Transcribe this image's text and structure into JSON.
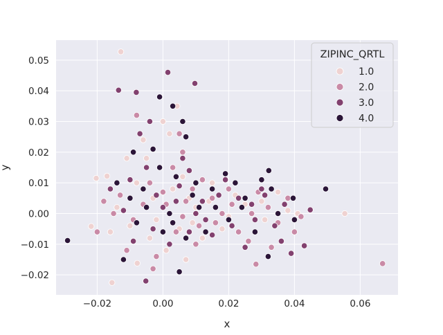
{
  "chart_data": {
    "type": "scatter",
    "title": "",
    "xlabel": "x",
    "ylabel": "y",
    "xlim": [
      -0.0325,
      0.0715
    ],
    "ylim": [
      -0.0265,
      0.0565
    ],
    "xticks": [
      -0.02,
      0.0,
      0.02,
      0.04,
      0.06
    ],
    "xtick_labels": [
      "−0.02",
      "0.00",
      "0.02",
      "0.04",
      "0.06"
    ],
    "yticks": [
      -0.02,
      -0.01,
      0.0,
      0.01,
      0.02,
      0.03,
      0.04,
      0.05
    ],
    "ytick_labels": [
      "−0.02",
      "−0.01",
      "0.00",
      "0.01",
      "0.02",
      "0.03",
      "0.04",
      "0.05"
    ],
    "grid": true,
    "legend": {
      "title": "ZIPINC_QRTL",
      "placement": "top-right",
      "entries": [
        "1.0",
        "2.0",
        "3.0",
        "4.0"
      ]
    },
    "colors": {
      "background": "#eaeaf2",
      "grid": "#ffffff",
      "q1": "#efd2d1",
      "q2": "#c98aa6",
      "q3": "#82416f",
      "q4": "#2b1538"
    },
    "series": [
      {
        "name": "1.0",
        "points": [
          [
            -0.0128,
            0.0527
          ],
          [
            0.0553,
            0.0
          ],
          [
            -0.0203,
            0.0115
          ],
          [
            -0.017,
            0.0122
          ],
          [
            -0.0218,
            -0.0042
          ],
          [
            -0.0155,
            -0.0225
          ],
          [
            -0.0078,
            -0.0162
          ],
          [
            0.0043,
            0.035
          ],
          [
            0.008,
            0.005
          ],
          [
            0.015,
            0.01
          ],
          [
            0.025,
            0.003
          ],
          [
            0.031,
            -0.002
          ],
          [
            0.005,
            -0.005
          ],
          [
            -0.005,
            0.018
          ],
          [
            0.001,
            -0.012
          ],
          [
            -0.003,
            0.005
          ],
          [
            0.002,
            0.026
          ],
          [
            0.012,
            -0.008
          ],
          [
            -0.01,
            -0.004
          ],
          [
            0.035,
            0.007
          ],
          [
            -0.008,
            0.01
          ],
          [
            0.006,
            0.012
          ],
          [
            0.018,
            -0.005
          ],
          [
            -0.002,
            -0.002
          ],
          [
            0.022,
            0.006
          ],
          [
            0.041,
            0.0
          ],
          [
            -0.014,
            0.002
          ],
          [
            0.0,
            0.03
          ],
          [
            0.007,
            -0.015
          ],
          [
            -0.006,
            0.024
          ],
          [
            0.03,
            0.004
          ],
          [
            0.01,
            0.002
          ],
          [
            -0.011,
            0.018
          ],
          [
            0.014,
            0.004
          ],
          [
            -0.004,
            -0.008
          ],
          [
            0.003,
            0.008
          ],
          [
            0.02,
            -0.001
          ],
          [
            0.038,
            0.001
          ],
          [
            -0.016,
            -0.006
          ],
          [
            0.009,
            -0.003
          ]
        ]
      },
      {
        "name": "2.0",
        "points": [
          [
            0.0668,
            -0.0163
          ],
          [
            0.0283,
            -0.0165
          ],
          [
            0.042,
            -0.001
          ],
          [
            -0.02,
            -0.006
          ],
          [
            -0.018,
            0.004
          ],
          [
            0.006,
            0.02
          ],
          [
            0.02,
            0.008
          ],
          [
            0.033,
            -0.011
          ],
          [
            -0.008,
            0.032
          ],
          [
            0.001,
            0.003
          ],
          [
            0.01,
            -0.01
          ],
          [
            0.027,
            0.0
          ],
          [
            -0.011,
            -0.012
          ],
          [
            0.015,
            0.005
          ],
          [
            0.004,
            -0.006
          ],
          [
            0.023,
            -0.006
          ],
          [
            -0.004,
            0.01
          ],
          [
            0.035,
            -0.003
          ],
          [
            0.012,
            0.011
          ],
          [
            -0.013,
            0.006
          ],
          [
            0.007,
            0.004
          ],
          [
            0.029,
            0.007
          ],
          [
            -0.002,
            -0.014
          ],
          [
            0.018,
            0.0
          ],
          [
            0.038,
            0.005
          ],
          [
            -0.006,
            0.003
          ],
          [
            0.003,
            0.015
          ],
          [
            0.026,
            -0.009
          ],
          [
            -0.009,
            -0.002
          ],
          [
            0.009,
            0.008
          ],
          [
            0.016,
            -0.003
          ],
          [
            0.005,
            0.026
          ],
          [
            0.032,
            0.002
          ],
          [
            -0.015,
            0.0
          ],
          [
            0.011,
            -0.004
          ],
          [
            0.0,
            0.007
          ],
          [
            0.021,
            0.003
          ],
          [
            -0.003,
            -0.018
          ],
          [
            0.04,
            -0.006
          ],
          [
            0.006,
            -0.001
          ]
        ]
      },
      {
        "name": "3.0",
        "points": [
          [
            0.0015,
            0.046
          ],
          [
            0.0097,
            0.0424
          ],
          [
            -0.0135,
            0.0402
          ],
          [
            -0.0081,
            0.0395
          ],
          [
            -0.0052,
            -0.022
          ],
          [
            0.043,
            -0.0105
          ],
          [
            0.039,
            -0.013
          ],
          [
            0.0448,
            0.0012
          ],
          [
            0.019,
            0.011
          ],
          [
            0.03,
            0.008
          ],
          [
            -0.016,
            0.008
          ],
          [
            0.0,
            0.002
          ],
          [
            0.008,
            -0.006
          ],
          [
            0.023,
            0.005
          ],
          [
            -0.005,
            0.015
          ],
          [
            0.034,
            -0.004
          ],
          [
            0.012,
            0.004
          ],
          [
            -0.009,
            -0.009
          ],
          [
            0.005,
            0.009
          ],
          [
            0.028,
            -0.002
          ],
          [
            -0.002,
            0.006
          ],
          [
            0.015,
            -0.007
          ],
          [
            0.037,
            0.003
          ],
          [
            -0.012,
            0.001
          ],
          [
            0.006,
            0.018
          ],
          [
            0.021,
            -0.004
          ],
          [
            0.002,
            -0.01
          ],
          [
            0.031,
            0.006
          ],
          [
            -0.007,
            0.026
          ],
          [
            0.01,
            0.0
          ],
          [
            0.025,
            -0.011
          ],
          [
            -0.003,
            -0.005
          ],
          [
            0.017,
            0.006
          ],
          [
            0.004,
            0.004
          ],
          [
            -0.01,
            0.011
          ],
          [
            0.036,
            -0.009
          ],
          [
            0.008,
            0.014
          ],
          [
            0.013,
            -0.002
          ],
          [
            -0.004,
            0.03
          ],
          [
            0.027,
            0.003
          ]
        ]
      },
      {
        "name": "4.0",
        "points": [
          [
            -0.029,
            -0.0088
          ],
          [
            0.0495,
            0.008
          ],
          [
            0.0322,
            0.014
          ],
          [
            0.0396,
            0.005
          ],
          [
            0.003,
            0.035
          ],
          [
            -0.001,
            0.038
          ],
          [
            0.019,
            0.013
          ],
          [
            0.032,
            -0.014
          ],
          [
            -0.012,
            -0.015
          ],
          [
            0.005,
            -0.019
          ],
          [
            0.01,
            0.01
          ],
          [
            -0.005,
            0.002
          ],
          [
            0.016,
            0.002
          ],
          [
            0.03,
            0.011
          ],
          [
            0.002,
            0.0
          ],
          [
            -0.01,
            0.005
          ],
          [
            0.007,
            -0.008
          ],
          [
            0.022,
            0.01
          ],
          [
            -0.003,
            0.021
          ],
          [
            0.013,
            -0.006
          ],
          [
            0.035,
            0.0
          ],
          [
            -0.008,
            -0.003
          ],
          [
            0.004,
            0.012
          ],
          [
            0.025,
            0.005
          ],
          [
            0.0,
            -0.006
          ],
          [
            0.009,
            0.006
          ],
          [
            -0.014,
            0.01
          ],
          [
            0.02,
            -0.002
          ],
          [
            0.006,
            0.03
          ],
          [
            0.033,
            0.008
          ],
          [
            -0.006,
            0.008
          ],
          [
            0.011,
            0.002
          ],
          [
            0.028,
            -0.006
          ],
          [
            -0.001,
            0.015
          ],
          [
            0.015,
            0.008
          ],
          [
            0.04,
            -0.002
          ],
          [
            0.003,
            -0.003
          ],
          [
            -0.009,
            0.02
          ],
          [
            0.024,
            0.002
          ],
          [
            0.007,
            0.025
          ]
        ]
      }
    ]
  }
}
